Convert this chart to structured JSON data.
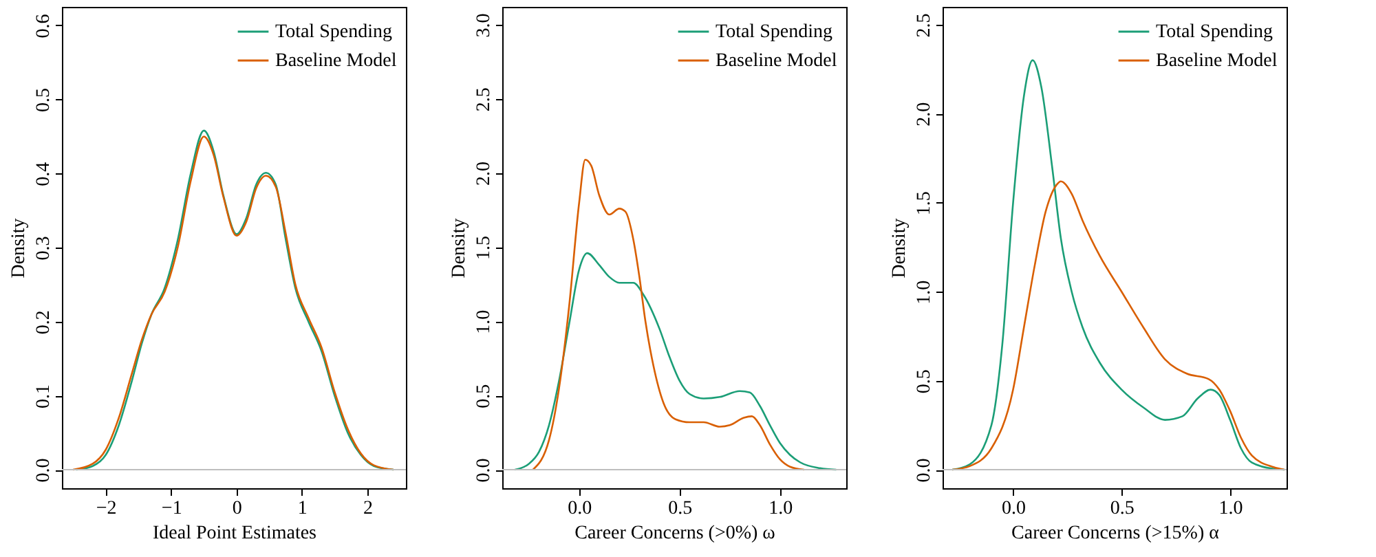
{
  "chart_data": [
    {
      "type": "line",
      "xlabel": "Ideal Point Estimates",
      "ylabel": "Density",
      "xlim": [
        -2.67,
        2.59
      ],
      "ylim": [
        -0.025,
        0.625
      ],
      "xticks": [
        {
          "value": -2,
          "label": "−2"
        },
        {
          "value": -1,
          "label": "−1"
        },
        0,
        1,
        2
      ],
      "yticks": [
        {
          "value": 0,
          "label": "0.0"
        },
        0.1,
        0.2,
        0.3,
        0.4,
        0.5,
        0.6
      ],
      "legend": "top right",
      "grid": false,
      "marker": "none",
      "line_style": "solid",
      "ref_lines": [
        {
          "axis": "y",
          "value": 0,
          "color": "#bebebe"
        }
      ],
      "series": [
        {
          "name": "Total Spending",
          "color": "#1b9e77",
          "x": [
            -2.45,
            -2.2,
            -2.0,
            -1.8,
            -1.6,
            -1.45,
            -1.3,
            -1.1,
            -0.9,
            -0.7,
            -0.5,
            -0.35,
            -0.2,
            0,
            0.15,
            0.3,
            0.45,
            0.6,
            0.75,
            0.9,
            1.1,
            1.3,
            1.5,
            1.7,
            1.9,
            2.1,
            2.4
          ],
          "values": [
            0,
            0.005,
            0.02,
            0.06,
            0.12,
            0.17,
            0.21,
            0.245,
            0.31,
            0.4,
            0.458,
            0.43,
            0.37,
            0.318,
            0.34,
            0.385,
            0.401,
            0.385,
            0.312,
            0.245,
            0.2,
            0.16,
            0.1,
            0.05,
            0.02,
            0.005,
            0
          ]
        },
        {
          "name": "Baseline Model",
          "color": "#d95f02",
          "x": [
            -2.5,
            -2.2,
            -2.0,
            -1.8,
            -1.6,
            -1.45,
            -1.3,
            -1.1,
            -0.9,
            -0.7,
            -0.5,
            -0.35,
            -0.2,
            0,
            0.15,
            0.3,
            0.45,
            0.6,
            0.75,
            0.9,
            1.1,
            1.3,
            1.5,
            1.7,
            1.9,
            2.1,
            2.4
          ],
          "values": [
            0,
            0.008,
            0.027,
            0.07,
            0.13,
            0.175,
            0.21,
            0.24,
            0.3,
            0.39,
            0.45,
            0.425,
            0.368,
            0.316,
            0.335,
            0.38,
            0.397,
            0.382,
            0.32,
            0.25,
            0.205,
            0.165,
            0.105,
            0.055,
            0.022,
            0.006,
            0
          ]
        }
      ]
    },
    {
      "type": "line",
      "xlabel": "Career Concerns (>0%) ω",
      "ylabel": "Density",
      "xlim": [
        -0.383,
        1.33
      ],
      "ylim": [
        -0.125,
        3.12
      ],
      "xticks": [
        {
          "value": 0,
          "label": "0.0"
        },
        0.5,
        {
          "value": 1,
          "label": "1.0"
        }
      ],
      "yticks": [
        {
          "value": 0,
          "label": "0.0"
        },
        0.5,
        {
          "value": 1,
          "label": "1.0"
        },
        1.5,
        {
          "value": 2,
          "label": "2.0"
        },
        2.5,
        {
          "value": 3,
          "label": "3.0"
        }
      ],
      "legend": "top right",
      "grid": false,
      "marker": "none",
      "line_style": "solid",
      "ref_lines": [
        {
          "axis": "y",
          "value": 0,
          "color": "#bebebe"
        }
      ],
      "series": [
        {
          "name": "Total Spending",
          "color": "#1b9e77",
          "x": [
            -0.32,
            -0.25,
            -0.2,
            -0.15,
            -0.1,
            -0.05,
            0,
            0.04,
            0.1,
            0.15,
            0.2,
            0.27,
            0.32,
            0.4,
            0.45,
            0.5,
            0.55,
            0.62,
            0.7,
            0.8,
            0.85,
            0.9,
            0.95,
            1.0,
            1.05,
            1.1,
            1.2,
            1.28
          ],
          "values": [
            0,
            0.04,
            0.12,
            0.3,
            0.6,
            0.98,
            1.35,
            1.46,
            1.38,
            1.3,
            1.26,
            1.26,
            1.18,
            0.95,
            0.76,
            0.6,
            0.51,
            0.48,
            0.49,
            0.53,
            0.52,
            0.43,
            0.3,
            0.18,
            0.1,
            0.05,
            0.01,
            0
          ]
        },
        {
          "name": "Baseline Model",
          "color": "#d95f02",
          "x": [
            -0.23,
            -0.15,
            -0.1,
            -0.05,
            0,
            0.03,
            0.06,
            0.1,
            0.15,
            0.2,
            0.23,
            0.27,
            0.3,
            0.33,
            0.37,
            0.42,
            0.48,
            0.55,
            0.62,
            0.7,
            0.75,
            0.82,
            0.86,
            0.9,
            0.95,
            1.0,
            1.05,
            1.12
          ],
          "values": [
            0,
            0.2,
            0.55,
            1.1,
            1.8,
            2.09,
            2.05,
            1.85,
            1.72,
            1.76,
            1.74,
            1.55,
            1.3,
            1.0,
            0.7,
            0.45,
            0.34,
            0.32,
            0.32,
            0.29,
            0.3,
            0.35,
            0.36,
            0.3,
            0.17,
            0.07,
            0.02,
            0
          ]
        }
      ]
    },
    {
      "type": "line",
      "xlabel": "Career Concerns (>15%) α",
      "ylabel": "Density",
      "xlim": [
        -0.325,
        1.26
      ],
      "ylim": [
        -0.104,
        2.6
      ],
      "xticks": [
        {
          "value": 0,
          "label": "0.0"
        },
        0.5,
        {
          "value": 1,
          "label": "1.0"
        }
      ],
      "yticks": [
        {
          "value": 0,
          "label": "0.0"
        },
        0.5,
        {
          "value": 1,
          "label": "1.0"
        },
        1.5,
        {
          "value": 2,
          "label": "2.0"
        },
        2.5
      ],
      "legend": "top right",
      "grid": false,
      "marker": "none",
      "line_style": "solid",
      "ref_lines": [
        {
          "axis": "y",
          "value": 0,
          "color": "#bebebe"
        }
      ],
      "series": [
        {
          "name": "Total Spending",
          "color": "#1b9e77",
          "x": [
            -0.28,
            -0.2,
            -0.1,
            -0.05,
            0,
            0.05,
            0.09,
            0.13,
            0.18,
            0.22,
            0.27,
            0.32,
            0.4,
            0.5,
            0.6,
            0.7,
            0.78,
            0.85,
            0.91,
            0.95,
            1.0,
            1.05,
            1.1,
            1.2,
            1.25
          ],
          "values": [
            0,
            0.03,
            0.25,
            0.7,
            1.5,
            2.1,
            2.3,
            2.15,
            1.7,
            1.3,
            1.0,
            0.8,
            0.6,
            0.45,
            0.35,
            0.28,
            0.3,
            0.4,
            0.45,
            0.42,
            0.28,
            0.12,
            0.04,
            0.005,
            0
          ]
        },
        {
          "name": "Baseline Model",
          "color": "#d95f02",
          "x": [
            -0.28,
            -0.2,
            -0.1,
            0,
            0.05,
            0.1,
            0.15,
            0.2,
            0.22,
            0.27,
            0.32,
            0.4,
            0.5,
            0.6,
            0.7,
            0.8,
            0.9,
            0.95,
            1.0,
            1.05,
            1.1,
            1.2,
            1.25
          ],
          "values": [
            0,
            0.02,
            0.12,
            0.45,
            0.8,
            1.15,
            1.45,
            1.6,
            1.62,
            1.55,
            1.4,
            1.2,
            1.0,
            0.8,
            0.62,
            0.54,
            0.51,
            0.45,
            0.33,
            0.18,
            0.08,
            0.015,
            0
          ]
        }
      ]
    }
  ]
}
